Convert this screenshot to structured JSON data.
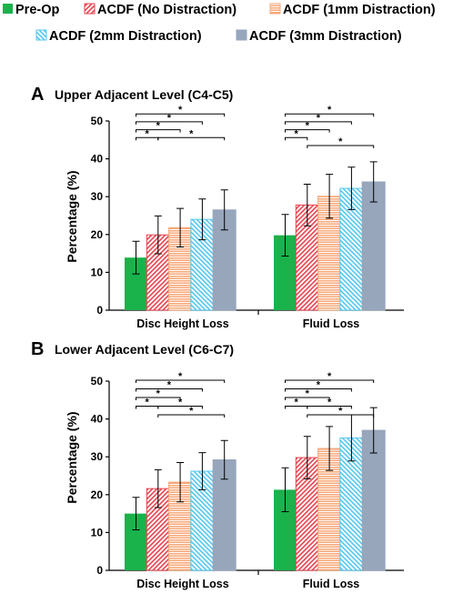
{
  "legend": {
    "items": [
      {
        "label": "Pre-Op",
        "color": "#19b24b",
        "pattern": "solid"
      },
      {
        "label": "ACDF (No Distraction)",
        "color": "#e8434f",
        "pattern": "diag-left"
      },
      {
        "label": "ACDF (1mm Distraction)",
        "color": "#f6a878",
        "pattern": "horizontal"
      },
      {
        "label": "ACDF (2mm Distraction)",
        "color": "#55c7ef",
        "pattern": "diag-right"
      },
      {
        "label": "ACDF (3mm Distraction)",
        "color": "#97a6bb",
        "pattern": "solid"
      }
    ]
  },
  "chart_data": [
    {
      "type": "bar",
      "letter": "A",
      "title": "Upper Adjacent Level (C4-C5)",
      "ylabel": "Percentage (%)",
      "ylim": [
        0,
        50
      ],
      "yticks": [
        0,
        10,
        20,
        30,
        40,
        50
      ],
      "categories": [
        "Disc Height Loss",
        "Fluid Loss"
      ],
      "series": [
        {
          "name": "Pre-Op",
          "values": [
            13.9,
            19.8
          ],
          "errors": [
            4.3,
            5.5
          ]
        },
        {
          "name": "ACDF (No Distraction)",
          "values": [
            19.9,
            27.8
          ],
          "errors": [
            5.0,
            5.5
          ]
        },
        {
          "name": "ACDF (1mm Distraction)",
          "values": [
            21.8,
            30.1
          ],
          "errors": [
            5.1,
            5.8
          ]
        },
        {
          "name": "ACDF (2mm Distraction)",
          "values": [
            24.0,
            32.2
          ],
          "errors": [
            5.4,
            5.6
          ]
        },
        {
          "name": "ACDF (3mm Distraction)",
          "values": [
            26.5,
            33.9
          ],
          "errors": [
            5.3,
            5.3
          ]
        }
      ],
      "significance": [
        {
          "category": 0,
          "from": 0,
          "to": 4,
          "label": "*",
          "level": 4
        },
        {
          "category": 0,
          "from": 0,
          "to": 3,
          "label": "*",
          "level": 3
        },
        {
          "category": 0,
          "from": 0,
          "to": 2,
          "label": "*",
          "level": 2
        },
        {
          "category": 0,
          "from": 0,
          "to": 1,
          "label": "*",
          "level": 1
        },
        {
          "category": 0,
          "from": 1,
          "to": 4,
          "label": "*",
          "level": 1
        },
        {
          "category": 1,
          "from": 0,
          "to": 4,
          "label": "*",
          "level": 4
        },
        {
          "category": 1,
          "from": 0,
          "to": 3,
          "label": "*",
          "level": 3
        },
        {
          "category": 1,
          "from": 0,
          "to": 2,
          "label": "*",
          "level": 2
        },
        {
          "category": 1,
          "from": 0,
          "to": 1,
          "label": "*",
          "level": 1
        },
        {
          "category": 1,
          "from": 1,
          "to": 4,
          "label": "*",
          "level": 0
        }
      ]
    },
    {
      "type": "bar",
      "letter": "B",
      "title": "Lower Adjacent Level (C6-C7)",
      "ylabel": "Percentage (%)",
      "ylim": [
        0,
        50
      ],
      "yticks": [
        0,
        10,
        20,
        30,
        40,
        50
      ],
      "categories": [
        "Disc Height Loss",
        "Fluid Loss"
      ],
      "series": [
        {
          "name": "Pre-Op",
          "values": [
            15.0,
            21.3
          ],
          "errors": [
            4.3,
            5.8
          ]
        },
        {
          "name": "ACDF (No Distraction)",
          "values": [
            21.6,
            29.8
          ],
          "errors": [
            5.0,
            5.6
          ]
        },
        {
          "name": "ACDF (1mm Distraction)",
          "values": [
            23.3,
            32.2
          ],
          "errors": [
            5.2,
            5.8
          ]
        },
        {
          "name": "ACDF (2mm Distraction)",
          "values": [
            26.2,
            35.0
          ],
          "errors": [
            4.9,
            6.1
          ]
        },
        {
          "name": "ACDF (3mm Distraction)",
          "values": [
            29.2,
            37.0
          ],
          "errors": [
            5.1,
            6.0
          ]
        }
      ],
      "significance": [
        {
          "category": 0,
          "from": 0,
          "to": 4,
          "label": "*",
          "level": 4
        },
        {
          "category": 0,
          "from": 0,
          "to": 3,
          "label": "*",
          "level": 3
        },
        {
          "category": 0,
          "from": 0,
          "to": 2,
          "label": "*",
          "level": 2
        },
        {
          "category": 0,
          "from": 0,
          "to": 1,
          "label": "*",
          "level": 1
        },
        {
          "category": 0,
          "from": 1,
          "to": 3,
          "label": "*",
          "level": 1
        },
        {
          "category": 0,
          "from": 1,
          "to": 4,
          "label": "*",
          "level": 0
        },
        {
          "category": 1,
          "from": 0,
          "to": 4,
          "label": "*",
          "level": 4
        },
        {
          "category": 1,
          "from": 0,
          "to": 3,
          "label": "*",
          "level": 3
        },
        {
          "category": 1,
          "from": 0,
          "to": 2,
          "label": "*",
          "level": 2
        },
        {
          "category": 1,
          "from": 0,
          "to": 1,
          "label": "*",
          "level": 1
        },
        {
          "category": 1,
          "from": 1,
          "to": 3,
          "label": "*",
          "level": 1
        },
        {
          "category": 1,
          "from": 1,
          "to": 4,
          "label": "*",
          "level": 0
        }
      ]
    }
  ]
}
